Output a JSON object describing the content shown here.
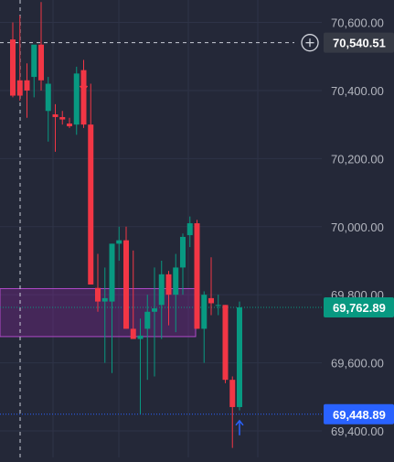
{
  "chart_data": {
    "type": "candlestick",
    "y_axis_labels": [
      "70,600.00",
      "70,400.00",
      "70,200.00",
      "70,000.00",
      "69,800.00",
      "69,600.00",
      "69,400.00"
    ],
    "y_axis_values": [
      70600,
      70400,
      70200,
      70000,
      69800,
      69600,
      69400
    ],
    "ylim": [
      69322,
      70666
    ],
    "grid": true,
    "crosshair": {
      "price": 70540.51,
      "label": "70,540.51"
    },
    "last_price": {
      "price": 69762.89,
      "label": "69,762.89",
      "color": "#089981"
    },
    "low_price_line": {
      "price": 69448.89,
      "label": "69,448.89",
      "color": "#2962ff"
    },
    "zone": {
      "top": 69818,
      "bottom": 69677,
      "color": "#9c27b0"
    },
    "markers": [
      {
        "type": "arrow-down",
        "candle": 10,
        "price": 70400,
        "color": "#f23645"
      },
      {
        "type": "arrow-up",
        "candle": 32,
        "price": 69430,
        "color": "#2962ff"
      }
    ],
    "colors": {
      "up": "#089981",
      "down": "#f23645",
      "background": "#242838"
    },
    "candles": [
      {
        "o": 70550,
        "h": 70600,
        "l": 70380,
        "c": 70385
      },
      {
        "o": 70430,
        "h": 70620,
        "l": 70370,
        "c": 70385
      },
      {
        "o": 70430,
        "h": 70480,
        "l": 70320,
        "c": 70400
      },
      {
        "o": 70440,
        "h": 70530,
        "l": 70380,
        "c": 70535
      },
      {
        "o": 70535,
        "h": 70660,
        "l": 70400,
        "c": 70430
      },
      {
        "o": 70340,
        "h": 70440,
        "l": 70250,
        "c": 70420
      },
      {
        "o": 70330,
        "h": 70360,
        "l": 70220,
        "c": 70322
      },
      {
        "o": 70322,
        "h": 70340,
        "l": 70300,
        "c": 70315
      },
      {
        "o": 70303,
        "h": 70320,
        "l": 70290,
        "c": 70295
      },
      {
        "o": 70300,
        "h": 70470,
        "l": 70270,
        "c": 70450
      },
      {
        "o": 70460,
        "h": 70490,
        "l": 70290,
        "c": 70300
      },
      {
        "o": 70300,
        "h": 70420,
        "l": 69830,
        "c": 69830
      },
      {
        "o": 69820,
        "h": 69920,
        "l": 69750,
        "c": 69780
      },
      {
        "o": 69780,
        "h": 69880,
        "l": 69600,
        "c": 69790
      },
      {
        "o": 69780,
        "h": 69950,
        "l": 69570,
        "c": 69950
      },
      {
        "o": 69950,
        "h": 70000,
        "l": 69900,
        "c": 69960
      },
      {
        "o": 69960,
        "h": 70000,
        "l": 69700,
        "c": 69700
      },
      {
        "o": 69700,
        "h": 69930,
        "l": 69680,
        "c": 69670
      },
      {
        "o": 69670,
        "h": 69730,
        "l": 69450,
        "c": 69680
      },
      {
        "o": 69700,
        "h": 69800,
        "l": 69550,
        "c": 69750
      },
      {
        "o": 69750,
        "h": 69880,
        "l": 69560,
        "c": 69760
      },
      {
        "o": 69770,
        "h": 69900,
        "l": 69670,
        "c": 69860
      },
      {
        "o": 69860,
        "h": 69870,
        "l": 69710,
        "c": 69800
      },
      {
        "o": 69800,
        "h": 69920,
        "l": 69690,
        "c": 69880
      },
      {
        "o": 69880,
        "h": 69980,
        "l": 69800,
        "c": 69970
      },
      {
        "o": 69975,
        "h": 70030,
        "l": 69940,
        "c": 70010
      },
      {
        "o": 70010,
        "h": 70020,
        "l": 69700,
        "c": 69700
      },
      {
        "o": 69700,
        "h": 69810,
        "l": 69600,
        "c": 69800
      },
      {
        "o": 69790,
        "h": 69910,
        "l": 69740,
        "c": 69775
      },
      {
        "o": 69770,
        "h": 69800,
        "l": 69740,
        "c": 69770
      },
      {
        "o": 69770,
        "h": 69770,
        "l": 69540,
        "c": 69550
      },
      {
        "o": 69550,
        "h": 69560,
        "l": 69350,
        "c": 69470
      },
      {
        "o": 69470,
        "h": 69780,
        "l": 69460,
        "c": 69762.89
      }
    ]
  }
}
